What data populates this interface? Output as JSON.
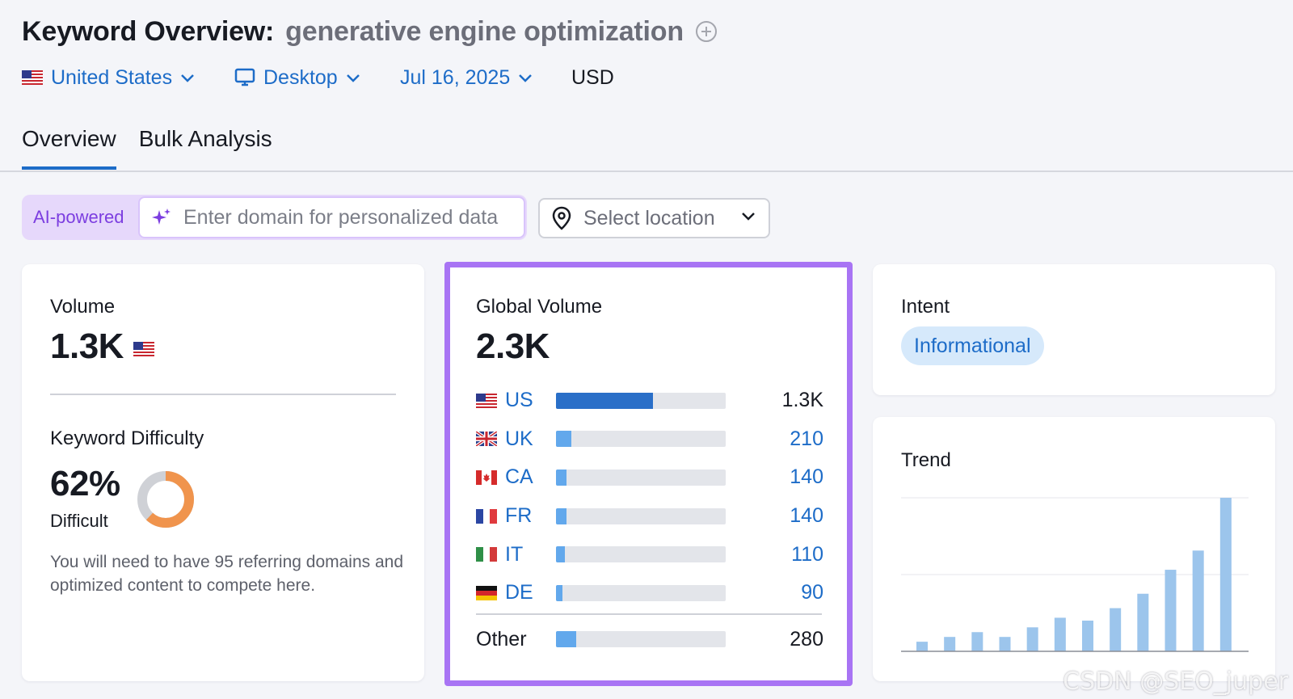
{
  "header": {
    "title": "Keyword Overview:",
    "keyword": "generative engine optimization",
    "filters": {
      "country": "United States",
      "device": "Desktop",
      "date": "Jul 16, 2025",
      "currency": "USD"
    }
  },
  "tabs": [
    {
      "label": "Overview",
      "active": true
    },
    {
      "label": "Bulk Analysis",
      "active": false
    }
  ],
  "ai": {
    "badge": "AI-powered",
    "placeholder": "Enter domain for personalized data",
    "location_placeholder": "Select location"
  },
  "volume": {
    "label": "Volume",
    "value": "1.3K",
    "kd_label": "Keyword Difficulty",
    "kd_value": "62%",
    "kd_percent": 62,
    "kd_level": "Difficult",
    "kd_desc": "You will need to have 95 referring domains and optimized content to compete here."
  },
  "global": {
    "label": "Global Volume",
    "value": "2.3K",
    "rows": [
      {
        "code": "US",
        "value": "1.3K",
        "share": 0.57
      },
      {
        "code": "UK",
        "value": "210",
        "share": 0.09
      },
      {
        "code": "CA",
        "value": "140",
        "share": 0.06
      },
      {
        "code": "FR",
        "value": "140",
        "share": 0.06
      },
      {
        "code": "IT",
        "value": "110",
        "share": 0.05
      },
      {
        "code": "DE",
        "value": "90",
        "share": 0.04
      }
    ],
    "other": {
      "label": "Other",
      "value": "280",
      "share": 0.12
    }
  },
  "intent": {
    "label": "Intent",
    "value": "Informational"
  },
  "trend": {
    "label": "Trend"
  },
  "chart_data": {
    "type": "bar",
    "values": [
      1,
      1.5,
      2,
      1.5,
      2.5,
      3.5,
      3.2,
      4.5,
      6,
      8.5,
      10.5,
      16
    ],
    "ylim": [
      0,
      16
    ],
    "grid": true,
    "color": "#9cc5ec"
  },
  "watermark": "CSDN @SEO_juper",
  "colors": {
    "accent": "#1d6cc8",
    "highlight_border": "#a874f4",
    "ai_purple": "#7c3ee0",
    "kd_orange": "#f0944d"
  }
}
